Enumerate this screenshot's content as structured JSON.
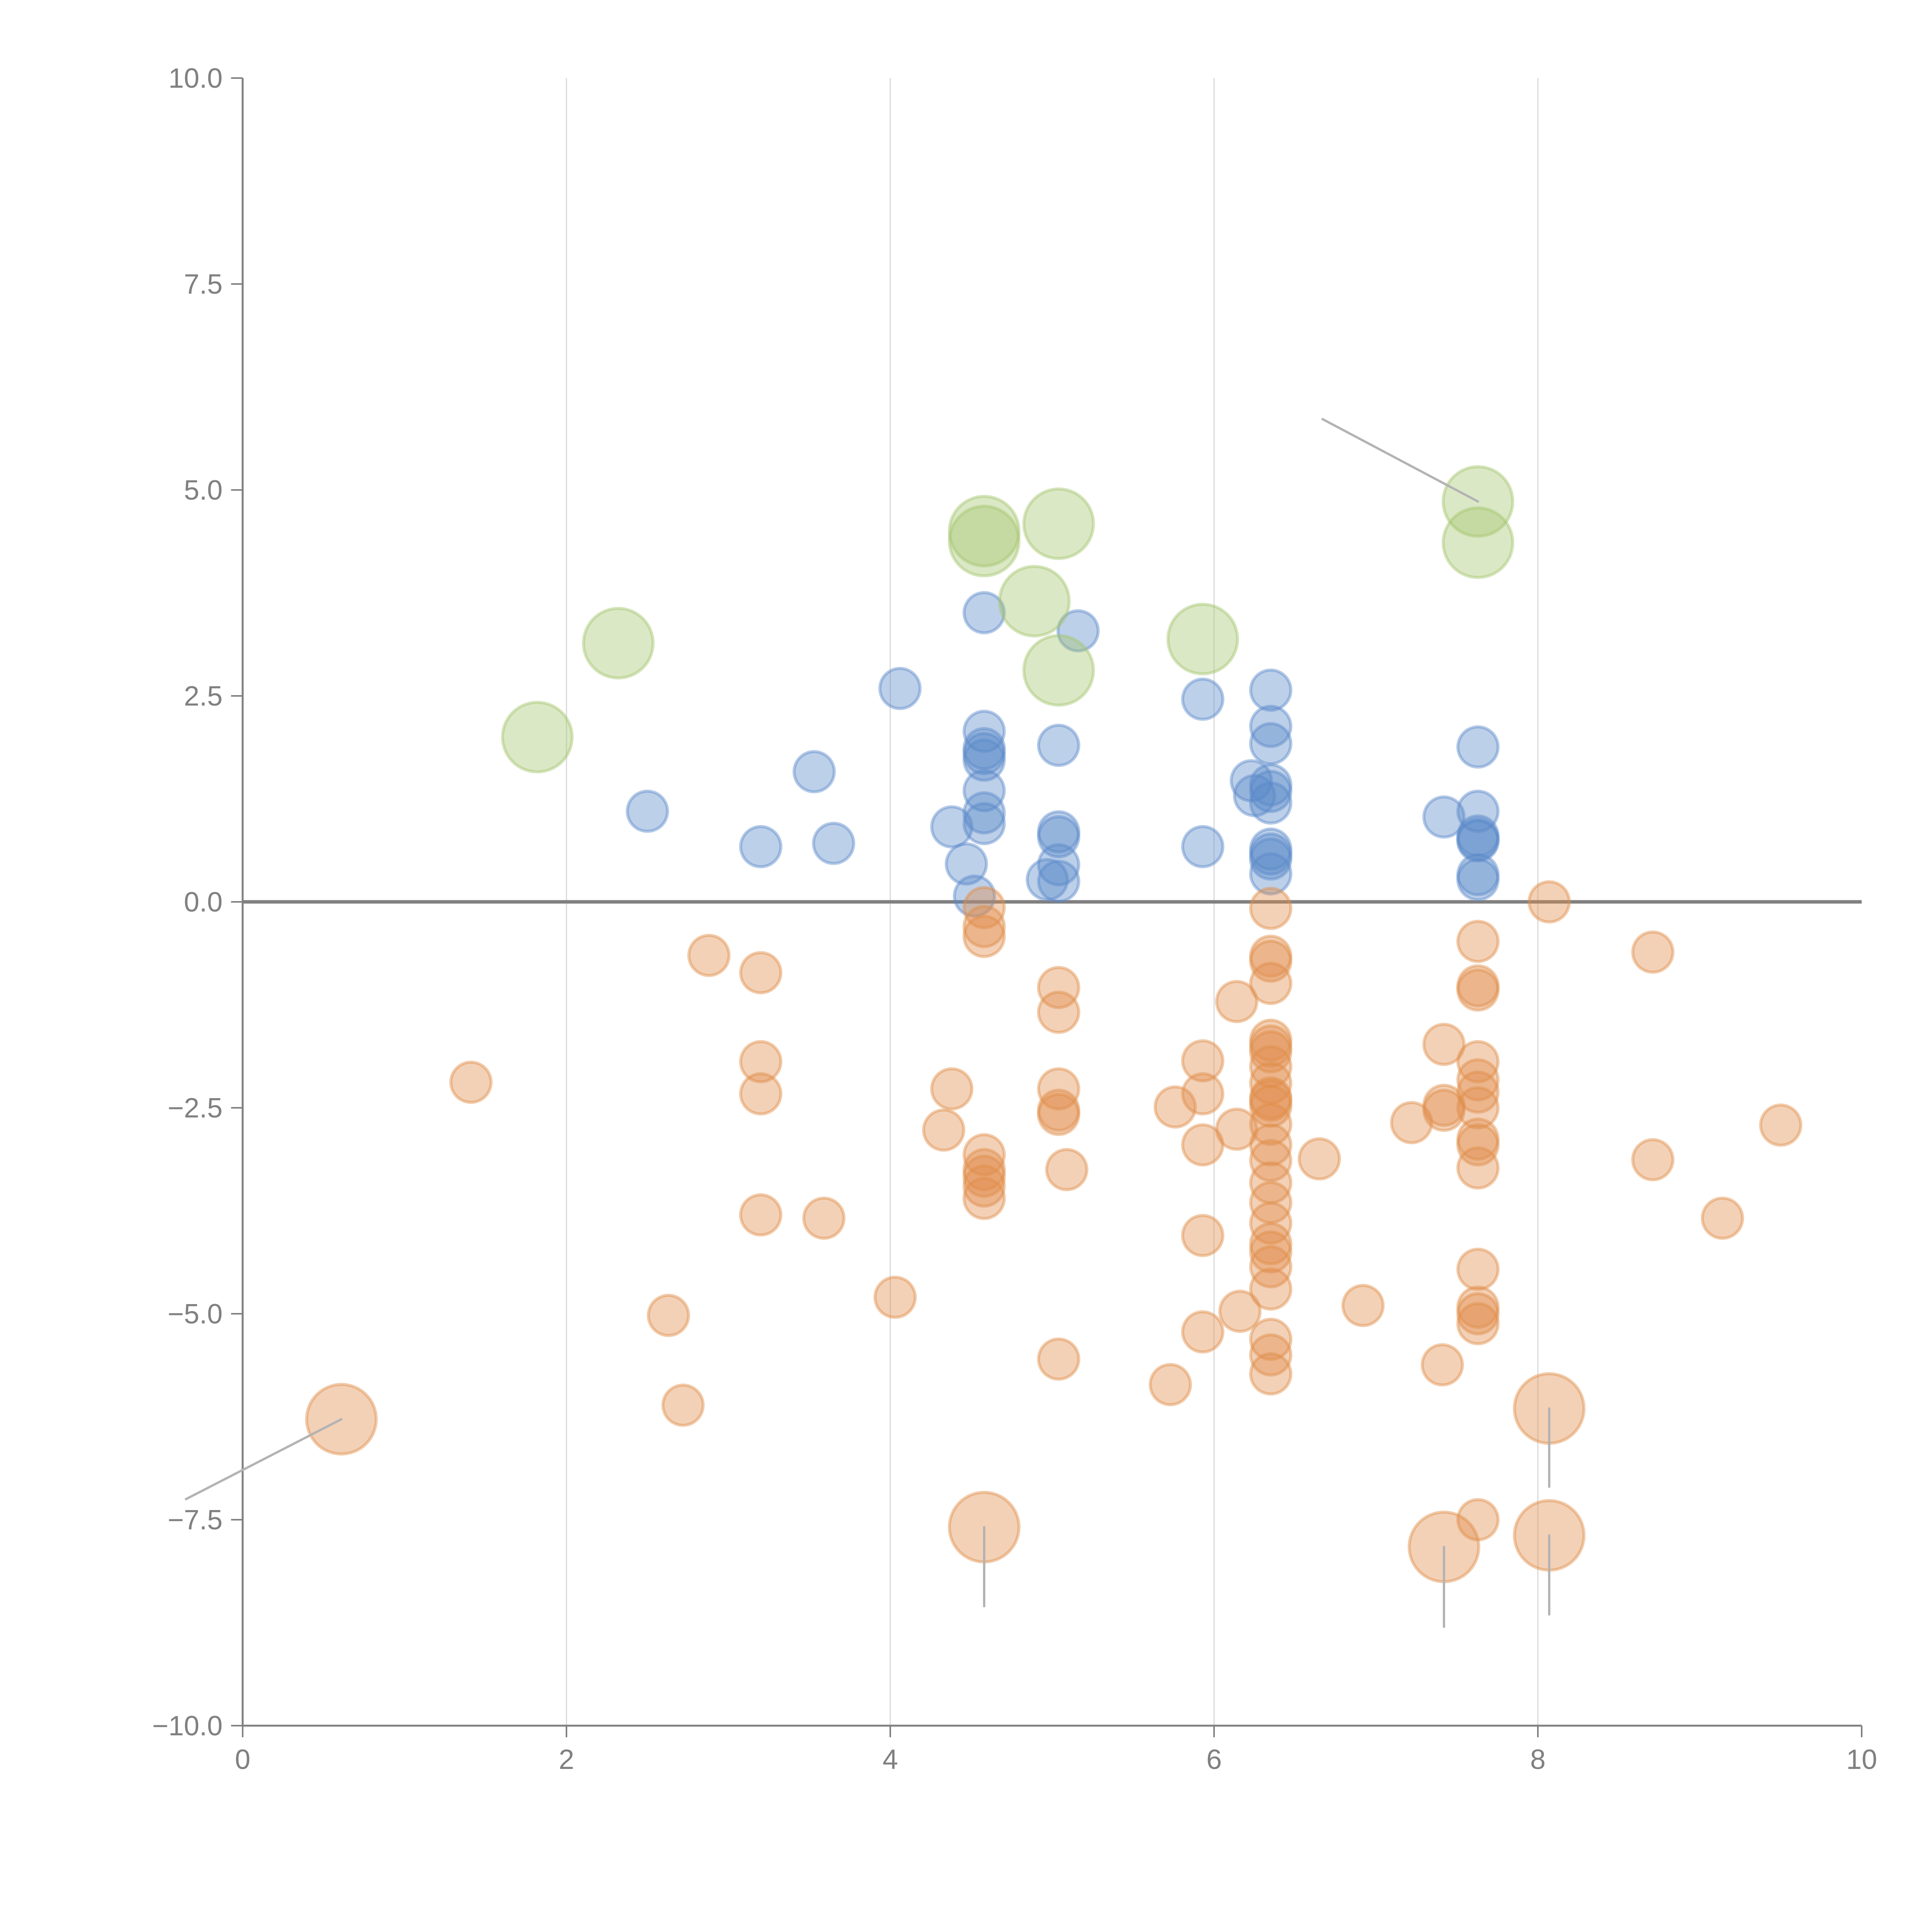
{
  "chart_data": {
    "type": "scatter",
    "title": "",
    "xlabel": "",
    "ylabel": "",
    "xlim": [
      0,
      10
    ],
    "ylim": [
      -10,
      10
    ],
    "x_ticks": [
      "0",
      "2",
      "4",
      "6",
      "8",
      "10"
    ],
    "y_ticks": [
      "10.0",
      "7.5",
      "5.0",
      "2.5",
      "0.0",
      "−2.5",
      "−5.0",
      "−7.5",
      "−10.0"
    ],
    "x_tick_values": [
      0,
      2,
      4,
      6,
      8,
      10
    ],
    "y_tick_values": [
      10,
      7.5,
      5,
      2.5,
      0,
      -2.5,
      -5,
      -7.5,
      -10
    ],
    "grid": "vertical",
    "zero_line": true,
    "legend": "none",
    "colors": {
      "positive": "#5b8ac9",
      "negative": "#e08d4a",
      "highlight_pos": "#a5c66f",
      "annotation_line": "#b3b3b3"
    },
    "series": [
      {
        "name": "positive",
        "size": "small",
        "points": [
          [
            2.5,
            1.1
          ],
          [
            3.2,
            0.67
          ],
          [
            3.53,
            1.58
          ],
          [
            3.65,
            0.71
          ],
          [
            4.06,
            2.59
          ],
          [
            4.58,
            3.51
          ],
          [
            4.58,
            2.07
          ],
          [
            4.58,
            1.86
          ],
          [
            4.58,
            1.8
          ],
          [
            4.58,
            1.72
          ],
          [
            4.58,
            1.35
          ],
          [
            4.58,
            1.08
          ],
          [
            4.58,
            0.95
          ],
          [
            4.38,
            0.91
          ],
          [
            4.47,
            0.46
          ],
          [
            4.52,
            0.07
          ],
          [
            5.04,
            1.9
          ],
          [
            5.04,
            0.85
          ],
          [
            5.04,
            0.79
          ],
          [
            5.04,
            0.45
          ],
          [
            4.97,
            0.27
          ],
          [
            5.04,
            0.25
          ],
          [
            5.16,
            3.29
          ],
          [
            5.93,
            2.46
          ],
          [
            5.93,
            0.67
          ],
          [
            6.35,
            2.57
          ],
          [
            6.35,
            2.13
          ],
          [
            6.35,
            1.92
          ],
          [
            6.23,
            1.47
          ],
          [
            6.25,
            1.29
          ],
          [
            6.35,
            1.42
          ],
          [
            6.35,
            1.34
          ],
          [
            6.35,
            1.2
          ],
          [
            6.35,
            0.64
          ],
          [
            6.35,
            0.58
          ],
          [
            6.35,
            0.52
          ],
          [
            6.35,
            0.34
          ],
          [
            7.42,
            1.03
          ],
          [
            7.63,
            1.88
          ],
          [
            7.63,
            1.1
          ],
          [
            7.63,
            0.8
          ],
          [
            7.63,
            0.76
          ],
          [
            7.63,
            0.74
          ],
          [
            7.63,
            0.33
          ],
          [
            7.63,
            0.27
          ]
        ]
      },
      {
        "name": "negative",
        "size": "small",
        "points": [
          [
            1.41,
            -2.19
          ],
          [
            2.63,
            -5.02
          ],
          [
            2.72,
            -6.11
          ],
          [
            2.88,
            -0.65
          ],
          [
            3.2,
            -0.86
          ],
          [
            3.2,
            -1.94
          ],
          [
            3.2,
            -2.33
          ],
          [
            3.2,
            -3.8
          ],
          [
            3.59,
            -3.84
          ],
          [
            4.03,
            -4.8
          ],
          [
            4.33,
            -2.77
          ],
          [
            4.38,
            -2.27
          ],
          [
            4.58,
            -0.07
          ],
          [
            4.58,
            -0.3
          ],
          [
            4.58,
            -0.42
          ],
          [
            4.58,
            -3.07
          ],
          [
            4.58,
            -3.25
          ],
          [
            4.58,
            -3.33
          ],
          [
            4.58,
            -3.45
          ],
          [
            4.58,
            -3.6
          ],
          [
            5.04,
            -1.04
          ],
          [
            5.04,
            -1.34
          ],
          [
            5.04,
            -2.27
          ],
          [
            5.04,
            -2.53
          ],
          [
            5.04,
            -2.58
          ],
          [
            5.09,
            -3.25
          ],
          [
            5.04,
            -5.55
          ],
          [
            5.73,
            -5.86
          ],
          [
            5.76,
            -2.49
          ],
          [
            5.93,
            -1.93
          ],
          [
            5.93,
            -2.33
          ],
          [
            5.93,
            -2.95
          ],
          [
            5.93,
            -4.05
          ],
          [
            5.93,
            -5.22
          ],
          [
            6.14,
            -1.21
          ],
          [
            6.14,
            -2.76
          ],
          [
            6.16,
            -4.97
          ],
          [
            6.35,
            -0.08
          ],
          [
            6.35,
            -0.66
          ],
          [
            6.35,
            -0.72
          ],
          [
            6.35,
            -0.99
          ],
          [
            6.35,
            -1.68
          ],
          [
            6.35,
            -1.75
          ],
          [
            6.35,
            -1.82
          ],
          [
            6.35,
            -2.0
          ],
          [
            6.35,
            -2.2
          ],
          [
            6.35,
            -2.38
          ],
          [
            6.35,
            -2.41
          ],
          [
            6.35,
            -2.48
          ],
          [
            6.35,
            -2.7
          ],
          [
            6.35,
            -2.95
          ],
          [
            6.35,
            -3.14
          ],
          [
            6.35,
            -3.41
          ],
          [
            6.35,
            -3.65
          ],
          [
            6.35,
            -3.9
          ],
          [
            6.35,
            -4.15
          ],
          [
            6.35,
            -4.25
          ],
          [
            6.35,
            -4.43
          ],
          [
            6.35,
            -4.7
          ],
          [
            6.35,
            -5.31
          ],
          [
            6.35,
            -5.5
          ],
          [
            6.35,
            -5.73
          ],
          [
            6.65,
            -3.12
          ],
          [
            6.92,
            -4.9
          ],
          [
            7.22,
            -2.68
          ],
          [
            7.42,
            -1.73
          ],
          [
            7.42,
            -2.47
          ],
          [
            7.42,
            -2.53
          ],
          [
            7.41,
            -5.62
          ],
          [
            7.63,
            -0.48
          ],
          [
            7.63,
            -1.02
          ],
          [
            7.63,
            -1.07
          ],
          [
            7.63,
            -1.94
          ],
          [
            7.63,
            -2.16
          ],
          [
            7.63,
            -2.31
          ],
          [
            7.63,
            -2.5
          ],
          [
            7.63,
            -2.88
          ],
          [
            7.63,
            -2.95
          ],
          [
            7.63,
            -3.23
          ],
          [
            7.63,
            -4.46
          ],
          [
            7.63,
            -4.92
          ],
          [
            7.63,
            -5.0
          ],
          [
            7.63,
            -5.12
          ],
          [
            7.63,
            -7.5
          ],
          [
            8.07,
            0.0
          ],
          [
            8.71,
            -0.61
          ],
          [
            8.71,
            -3.13
          ],
          [
            9.14,
            -3.84
          ],
          [
            9.5,
            -2.71
          ]
        ]
      },
      {
        "name": "highlight_positive",
        "size": "large",
        "points": [
          [
            1.82,
            2.0
          ],
          [
            2.32,
            3.14
          ],
          [
            4.58,
            4.5
          ],
          [
            4.58,
            4.38
          ],
          [
            4.89,
            3.65
          ],
          [
            5.04,
            4.59
          ],
          [
            5.04,
            2.81
          ],
          [
            5.93,
            3.19
          ],
          [
            7.63,
            4.86
          ],
          [
            7.63,
            4.36
          ]
        ]
      },
      {
        "name": "highlight_negative",
        "size": "large",
        "points": [
          [
            0.61,
            -6.28
          ],
          [
            4.58,
            -7.59
          ],
          [
            7.42,
            -7.83
          ],
          [
            8.07,
            -6.15
          ],
          [
            8.07,
            -7.69
          ]
        ]
      }
    ],
    "annotations": [
      {
        "point": [
          7.63,
          4.86
        ],
        "label_at": [
          6.67,
          5.86
        ],
        "line_visible": true
      },
      {
        "point": [
          0.61,
          -6.28
        ],
        "label_at": [
          -0.35,
          -7.25
        ],
        "line_visible": true
      },
      {
        "point": [
          4.58,
          -7.59
        ],
        "label_at": [
          4.58,
          -8.55
        ],
        "line_visible": true
      },
      {
        "point": [
          7.42,
          -7.83
        ],
        "label_at": [
          7.42,
          -8.8
        ],
        "line_visible": true
      },
      {
        "point": [
          8.07,
          -6.15
        ],
        "label_at": [
          8.07,
          -7.1
        ],
        "line_visible": true
      },
      {
        "point": [
          8.07,
          -7.69
        ],
        "label_at": [
          8.07,
          -8.65
        ],
        "line_visible": true
      },
      {
        "point": [
          1.82,
          2.0
        ],
        "label_at": [
          2.0,
          1.7
        ],
        "line_visible": false
      },
      {
        "point": [
          2.32,
          3.14
        ],
        "label_at": [
          2.5,
          3.4
        ],
        "line_visible": false
      },
      {
        "point": [
          5.04,
          4.59
        ],
        "label_at": [
          5.35,
          4.7
        ],
        "line_visible": false
      },
      {
        "point": [
          4.89,
          3.65
        ],
        "label_at": [
          4.0,
          3.8
        ],
        "line_visible": false
      },
      {
        "point": [
          5.04,
          2.81
        ],
        "label_at": [
          5.35,
          2.4
        ],
        "line_visible": false
      },
      {
        "point": [
          5.93,
          3.19
        ],
        "label_at": [
          6.3,
          3.4
        ],
        "line_visible": false
      }
    ]
  }
}
